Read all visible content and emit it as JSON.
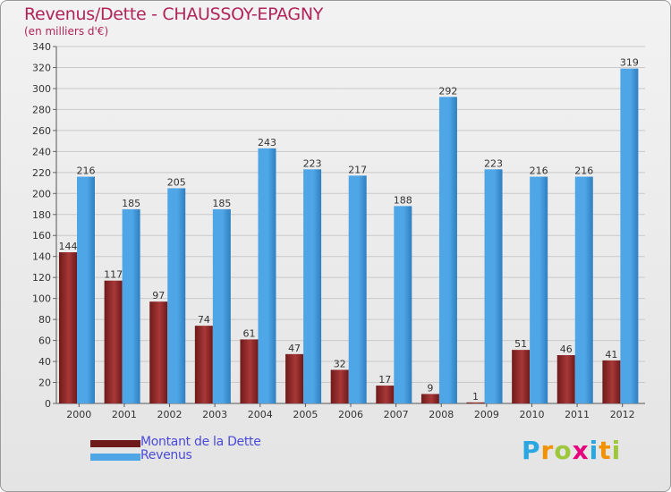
{
  "title": "Revenus/Dette - CHAUSSOY-EPAGNY",
  "subtitle": "(en milliers d'€)",
  "colors": {
    "debt_top": "#6e1a1a",
    "debt_bottom": "#a83838",
    "revenue": "#4fa6e6",
    "revenue_dark": "#2f7fc0",
    "title": "#b0245a",
    "legend_text": "#4a4ad8"
  },
  "legend": {
    "debt_label": "Montant de la Dette",
    "revenue_label": "Revenus"
  },
  "logo": {
    "letters": [
      "P",
      "r",
      "o",
      "x",
      "i",
      "t",
      "i"
    ],
    "colors": [
      "#2aa6e0",
      "#f39200",
      "#9ec73b",
      "#e6007e",
      "#2aa6e0",
      "#f39200",
      "#9ec73b"
    ]
  },
  "chart_data": {
    "type": "bar",
    "title": "Revenus/Dette - CHAUSSOY-EPAGNY",
    "ylabel": "(en milliers d'€)",
    "xlabel": "",
    "categories": [
      "2000",
      "2001",
      "2002",
      "2003",
      "2004",
      "2005",
      "2006",
      "2007",
      "2008",
      "2009",
      "2010",
      "2011",
      "2012"
    ],
    "series": [
      {
        "name": "Montant de la Dette",
        "values": [
          144,
          117,
          97,
          74,
          61,
          47,
          32,
          17,
          9,
          1,
          51,
          46,
          41
        ]
      },
      {
        "name": "Revenus",
        "values": [
          216,
          185,
          205,
          185,
          243,
          223,
          217,
          188,
          292,
          223,
          216,
          216,
          319
        ]
      }
    ],
    "ylim": [
      0,
      340
    ],
    "yticks": [
      0,
      20,
      40,
      60,
      80,
      100,
      120,
      140,
      160,
      180,
      200,
      220,
      240,
      260,
      280,
      300,
      320,
      340
    ],
    "grid": true,
    "legend_position": "bottom-left"
  }
}
